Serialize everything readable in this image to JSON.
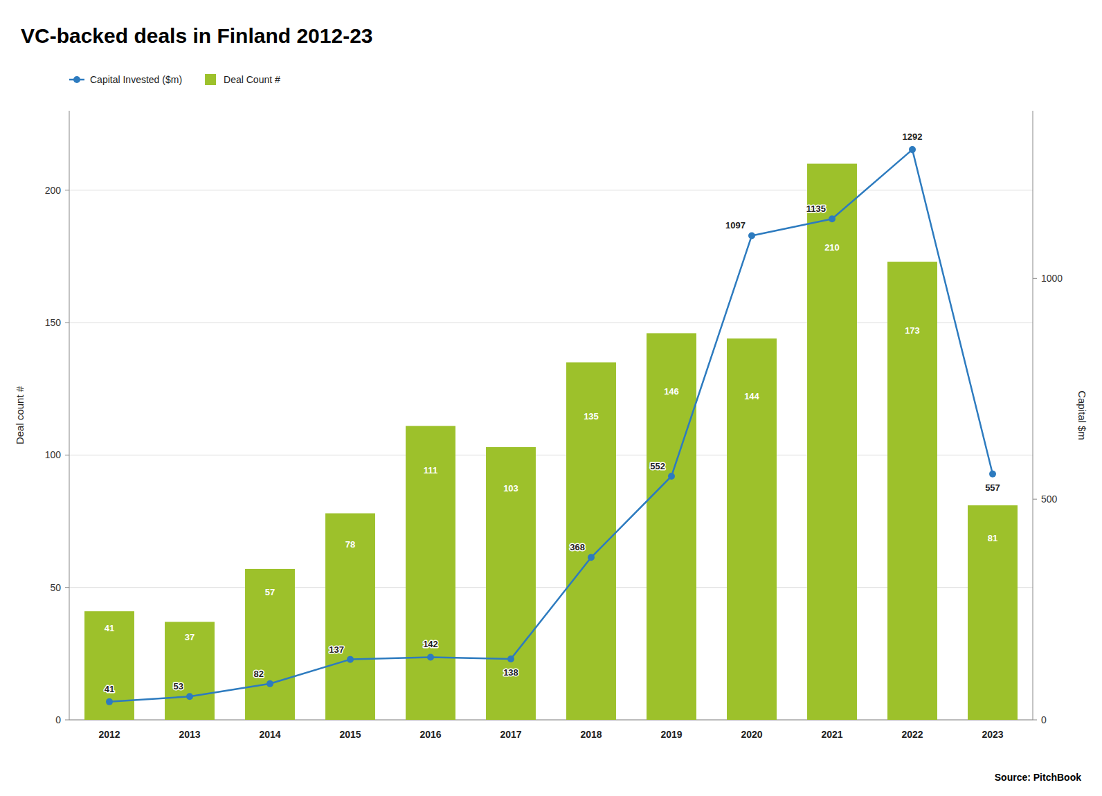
{
  "chart_data": {
    "type": "bar",
    "title": "VC-backed deals in Finland 2012-23",
    "y_label": "Deal count #",
    "y2_label": "Capital $m",
    "annotations": [
      "Source: PitchBook"
    ],
    "categories": [
      "2012",
      "2013",
      "2014",
      "2015",
      "2016",
      "2017",
      "2018",
      "2019",
      "2020",
      "2021",
      "2022",
      "2023"
    ],
    "series": [
      {
        "name": "Capital Invested ($m)",
        "type": "line",
        "axis": "y2",
        "color": "#2d7bbf",
        "marker": "circle",
        "line_style": "solid",
        "values": [
          41,
          53,
          82,
          137,
          142,
          138,
          368,
          552,
          1097,
          1135,
          1292,
          557
        ]
      },
      {
        "name": "Deal Count #",
        "type": "bar",
        "color": "#9dc12b",
        "values": [
          41,
          37,
          57,
          78,
          111,
          103,
          135,
          146,
          144,
          210,
          173,
          81
        ]
      }
    ],
    "ylim": [
      0,
      230
    ],
    "yticks": [
      0,
      50,
      100,
      150,
      200
    ],
    "y2lim": [
      0,
      1380
    ],
    "y2ticks": [
      0,
      500,
      1000
    ],
    "grid": true,
    "legend": "upper-left",
    "data_labels": true
  }
}
